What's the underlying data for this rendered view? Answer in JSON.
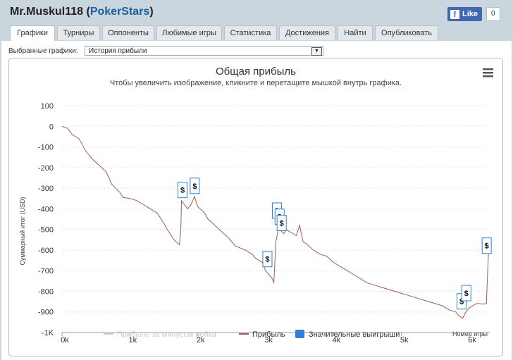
{
  "header": {
    "player": "Mr.Muskul118",
    "open_paren": " (",
    "site": "PokerStars",
    "close_paren": ")",
    "fb_like": "Like",
    "fb_count": "0"
  },
  "tabs": [
    {
      "label": "Графики",
      "active": true
    },
    {
      "label": "Турниры"
    },
    {
      "label": "Оппоненты"
    },
    {
      "label": "Любимые игры"
    },
    {
      "label": "Статистика"
    },
    {
      "label": "Достижения"
    },
    {
      "label": "Найти"
    },
    {
      "label": "Опубликовать"
    }
  ],
  "selector": {
    "label": "Выбранные графики:",
    "value": "История прибыли"
  },
  "chart_data": {
    "type": "line",
    "title": "Общая прибыль",
    "subtitle": "Чтобы увеличить изображение, кликните и перетащите мышкой внутрь графика.",
    "ylabel": "Суммарный итог (USD)",
    "xlabel": "Номер игры",
    "ylim": [
      -1000,
      100
    ],
    "xlim": [
      0,
      6300
    ],
    "y_ticks": [
      "100",
      "0",
      "-100",
      "-200",
      "-300",
      "-400",
      "-500",
      "-600",
      "-700",
      "-800",
      "-900",
      "-1K"
    ],
    "y_tick_values": [
      100,
      0,
      -100,
      -200,
      -300,
      -400,
      -500,
      -600,
      -700,
      -800,
      -900,
      -1000
    ],
    "x_ticks": [
      "0k",
      "1k",
      "2k",
      "3k",
      "4k",
      "5k",
      "6k"
    ],
    "x_tick_values": [
      0,
      1000,
      2000,
      3000,
      4000,
      5000,
      6000
    ],
    "grid": true,
    "legend": [
      {
        "name": "Прибыль за минусом рейка",
        "color": "#cccccc",
        "symbol": "line",
        "visible": false
      },
      {
        "name": "Прибыль",
        "color": "#a05a5a",
        "symbol": "line",
        "visible": true
      },
      {
        "name": "Значительные выигрыши",
        "color": "#2f7ed8",
        "symbol": "square",
        "visible": true
      }
    ],
    "series": [
      {
        "name": "Прибыль",
        "color": "#a05a5a",
        "x": [
          0,
          80,
          150,
          250,
          350,
          450,
          550,
          650,
          730,
          850,
          900,
          1000,
          1100,
          1200,
          1300,
          1400,
          1500,
          1550,
          1650,
          1730,
          1750,
          1760,
          1850,
          1900,
          1950,
          2000,
          2100,
          2150,
          2250,
          2350,
          2450,
          2550,
          2700,
          2800,
          2850,
          2950,
          3000,
          3050,
          3100,
          3120,
          3150,
          3200,
          3230,
          3270,
          3300,
          3350,
          3400,
          3450,
          3500,
          3550,
          3600,
          3700,
          3800,
          3900,
          4000,
          4100,
          4200,
          4300,
          4400,
          4500,
          4600,
          4700,
          4800,
          4900,
          5000,
          5100,
          5200,
          5300,
          5400,
          5500,
          5600,
          5700,
          5800,
          5850,
          5900,
          5950,
          6000,
          6050,
          6100,
          6150,
          6200,
          6250,
          6280
        ],
        "y": [
          0,
          -10,
          -40,
          -60,
          -120,
          -160,
          -190,
          -220,
          -280,
          -320,
          -345,
          -350,
          -360,
          -380,
          -400,
          -420,
          -470,
          -500,
          -550,
          -575,
          -500,
          -360,
          -400,
          -380,
          -340,
          -390,
          -420,
          -450,
          -480,
          -510,
          -540,
          -580,
          -600,
          -620,
          -640,
          -660,
          -700,
          -720,
          -740,
          -760,
          -560,
          -480,
          -510,
          -520,
          -500,
          -510,
          -520,
          -530,
          -480,
          -560,
          -570,
          -600,
          -620,
          -630,
          -660,
          -680,
          -700,
          -720,
          -740,
          -760,
          -770,
          -780,
          -790,
          -800,
          -810,
          -820,
          -830,
          -840,
          -850,
          -860,
          -870,
          -890,
          -900,
          -920,
          -930,
          -900,
          -880,
          -870,
          -860,
          -860,
          -862,
          -860,
          -620
        ]
      }
    ],
    "markers": [
      {
        "x": 1770,
        "y": -360,
        "label": "$"
      },
      {
        "x": 1950,
        "y": -340,
        "label": "$"
      },
      {
        "x": 3020,
        "y": -695,
        "label": "$"
      },
      {
        "x": 3160,
        "y": -460,
        "label": "$"
      },
      {
        "x": 3200,
        "y": -490,
        "label": "$"
      },
      {
        "x": 3230,
        "y": -520,
        "label": "$"
      },
      {
        "x": 5880,
        "y": -900,
        "label": "$"
      },
      {
        "x": 5950,
        "y": -860,
        "label": "$"
      },
      {
        "x": 6250,
        "y": -630,
        "label": "$"
      }
    ]
  }
}
